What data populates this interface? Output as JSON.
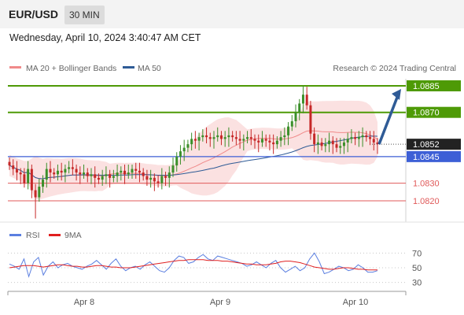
{
  "header": {
    "pair": "EUR/USD",
    "timeframe": "30 MIN"
  },
  "timestamp": "Wednesday, April 10, 2024 3:40:47 AM CET",
  "legend": {
    "ma20": "MA 20 + Bollinger Bands",
    "ma50": "MA 50",
    "credit": "Research © 2024 Trading Central"
  },
  "rsi_legend": {
    "rsi": "RSI",
    "ma9": "9MA"
  },
  "colors": {
    "green": "#4e9a06",
    "red": "#e05a5a",
    "blue": "#3d5fd6",
    "navy": "#2f5b96",
    "black": "#222222",
    "band": "#f7c9c9"
  },
  "chart_data": [
    {
      "type": "candlestick",
      "series": [
        {
          "name": "MA 20 + Bollinger Bands"
        },
        {
          "name": "MA 50"
        }
      ],
      "levels": [
        {
          "value": 1.0885,
          "label": "1.0885",
          "kind": "target"
        },
        {
          "value": 1.087,
          "label": "1.0870",
          "kind": "target"
        },
        {
          "value": 1.0852,
          "label": "1.0852",
          "kind": "last-price"
        },
        {
          "value": 1.0845,
          "label": "1.0845",
          "kind": "pivot"
        },
        {
          "value": 1.083,
          "label": "1.0830",
          "kind": "support"
        },
        {
          "value": 1.082,
          "label": "1.0820",
          "kind": "support"
        }
      ],
      "x_ticks": [
        "Apr 8",
        "Apr 9",
        "Apr 10"
      ],
      "closes": [
        1.084,
        1.0838,
        1.0836,
        1.0835,
        1.083,
        1.0838,
        1.0826,
        1.0822,
        1.0828,
        1.0832,
        1.0838,
        1.0836,
        1.0835,
        1.0837,
        1.0836,
        1.0838,
        1.0839,
        1.0838,
        1.0836,
        1.0835,
        1.0836,
        1.0834,
        1.0835,
        1.0833,
        1.0832,
        1.0834,
        1.0835,
        1.0833,
        1.0834,
        1.0836,
        1.0837,
        1.0835,
        1.0836,
        1.0838,
        1.0837,
        1.0836,
        1.0834,
        1.0832,
        1.0833,
        1.0831,
        1.083,
        1.0834,
        1.0833,
        1.0836,
        1.084,
        1.0845,
        1.0848,
        1.085,
        1.0852,
        1.0855,
        1.0854,
        1.0856,
        1.0857,
        1.0856,
        1.0855,
        1.0856,
        1.0857,
        1.0855,
        1.0856,
        1.0857,
        1.0856,
        1.0855,
        1.0854,
        1.0855,
        1.0856,
        1.0855,
        1.0854,
        1.0853,
        1.0855,
        1.0854,
        1.0853,
        1.0852,
        1.0854,
        1.0856,
        1.0857,
        1.0862,
        1.0865,
        1.087,
        1.0875,
        1.088,
        1.0874,
        1.0858,
        1.0852,
        1.0853,
        1.0851,
        1.0852,
        1.0854,
        1.0852,
        1.085,
        1.0851,
        1.0853,
        1.0855,
        1.0856,
        1.0855,
        1.0856,
        1.0857,
        1.0856,
        1.0855,
        1.0853,
        1.0852
      ],
      "y_range": [
        1.0808,
        1.0889
      ]
    },
    {
      "type": "line",
      "title": "RSI",
      "series": [
        {
          "name": "RSI",
          "values": [
            55,
            52,
            48,
            62,
            38,
            58,
            64,
            40,
            52,
            58,
            50,
            54,
            56,
            52,
            50,
            48,
            52,
            55,
            60,
            54,
            48,
            56,
            62,
            52,
            46,
            50,
            52,
            48,
            54,
            58,
            52,
            46,
            44,
            50,
            60,
            66,
            64,
            56,
            58,
            64,
            68,
            62,
            60,
            66,
            64,
            62,
            60,
            58,
            56,
            52,
            54,
            58,
            54,
            50,
            56,
            60,
            50,
            44,
            48,
            52,
            46,
            50,
            62,
            70,
            58,
            42,
            44,
            48,
            52,
            50,
            46,
            48,
            54,
            50,
            44,
            44,
            46
          ]
        },
        {
          "name": "9MA",
          "values": [
            50,
            51,
            52,
            53,
            53,
            53,
            52,
            51,
            52,
            53,
            54,
            54,
            53,
            52,
            52,
            51,
            51,
            52,
            53,
            53,
            52,
            51,
            51,
            50,
            50,
            50,
            51,
            52,
            53,
            54,
            55,
            56,
            57,
            58,
            59,
            60,
            60,
            61,
            61,
            61,
            61,
            60,
            60,
            60,
            59,
            59,
            58,
            57,
            56,
            55,
            55,
            54,
            54,
            54,
            55,
            56,
            58,
            59,
            59,
            58,
            57,
            55,
            53,
            51,
            50,
            49,
            48,
            48,
            49,
            50,
            50,
            49,
            48,
            48,
            47,
            47,
            47
          ]
        }
      ],
      "y_ticks": [
        70,
        50,
        30
      ],
      "ylim": [
        20,
        80
      ]
    }
  ]
}
